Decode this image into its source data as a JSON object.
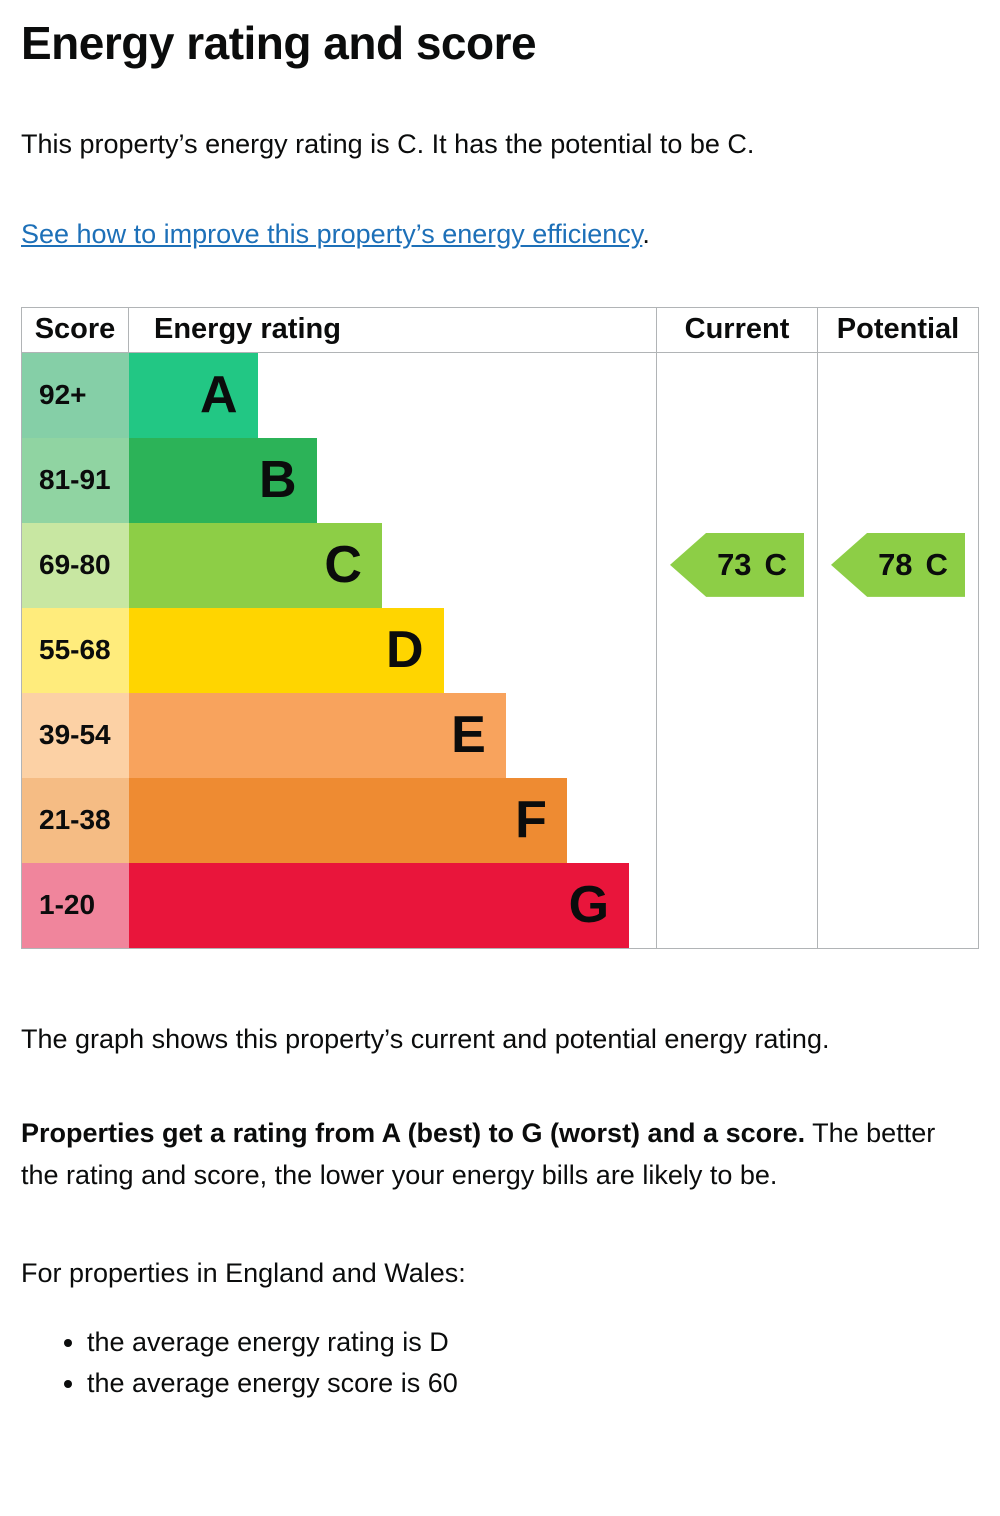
{
  "page": {
    "title": "Energy rating and score",
    "intro": "This property’s energy rating is C. It has the potential to be C.",
    "improve_link": "See how to improve this property’s energy efficiency",
    "improve_link_suffix": ".",
    "caption": "The graph shows this property’s current and potential energy rating.",
    "explain_bold": "Properties get a rating from A (best) to G (worst) and a score.",
    "explain_rest": " The better the rating and score, the lower your energy bills are likely to be.",
    "region_heading": "For properties in England and Wales:",
    "bullets": {
      "rating": "the average energy rating is D",
      "score": "the average energy score is 60"
    }
  },
  "colors": {
    "text": "#0b0c0c",
    "link": "#1d70b8",
    "border": "#b1b4b6",
    "arrow": "#8dce46"
  },
  "chart_data": {
    "type": "bar",
    "title": "Energy rating and score",
    "columns": [
      "Score",
      "Energy rating",
      "Current",
      "Potential"
    ],
    "bands": [
      {
        "score": "92+",
        "letter": "A",
        "width_pct": 24.4,
        "bar_color": "#22c784",
        "score_color": "#85cfa7"
      },
      {
        "score": "81-91",
        "letter": "B",
        "width_pct": 35.6,
        "bar_color": "#2cb358",
        "score_color": "#90d4a2"
      },
      {
        "score": "69-80",
        "letter": "C",
        "width_pct": 48.0,
        "bar_color": "#8dce46",
        "score_color": "#c8e7a2"
      },
      {
        "score": "55-68",
        "letter": "D",
        "width_pct": 59.7,
        "bar_color": "#ffd500",
        "score_color": "#ffec7c"
      },
      {
        "score": "39-54",
        "letter": "E",
        "width_pct": 71.5,
        "bar_color": "#f8a35d",
        "score_color": "#fcd1a5"
      },
      {
        "score": "21-38",
        "letter": "F",
        "width_pct": 83.1,
        "bar_color": "#ee8b32",
        "score_color": "#f5bc84"
      },
      {
        "score": "1-20",
        "letter": "G",
        "width_pct": 94.9,
        "bar_color": "#e9153b",
        "score_color": "#f0859c"
      }
    ],
    "current": {
      "score": "73",
      "band": "C",
      "band_row": 2
    },
    "potential": {
      "score": "78",
      "band": "C",
      "band_row": 2
    }
  }
}
